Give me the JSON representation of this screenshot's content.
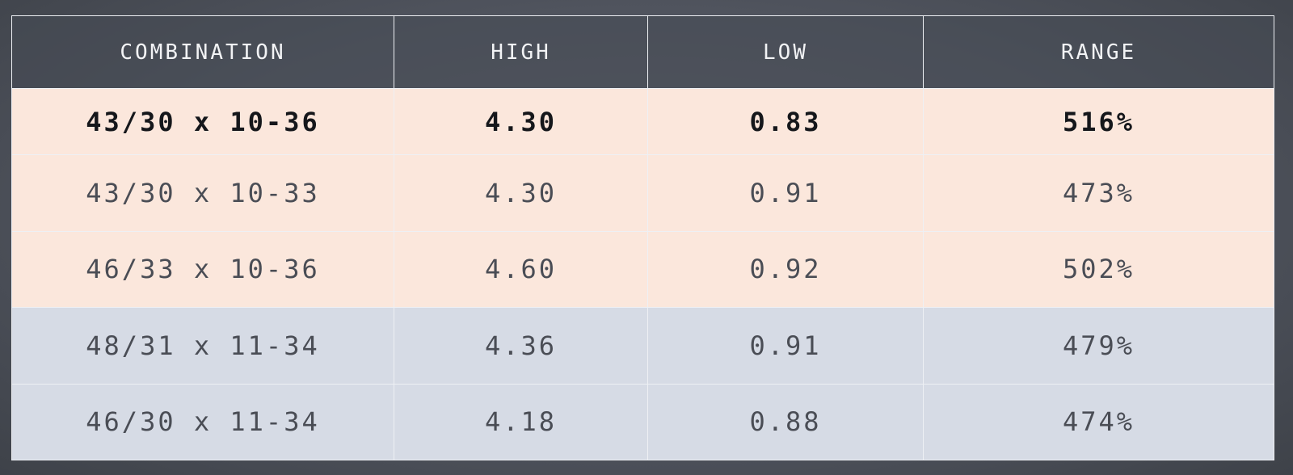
{
  "table": {
    "headers": [
      "COMBINATION",
      "HIGH",
      "LOW",
      "RANGE"
    ],
    "rows": [
      {
        "combination": "43/30 x 10-36",
        "high": "4.30",
        "low": "0.83",
        "range": "516%",
        "group": "peach",
        "highlight": true
      },
      {
        "combination": "43/30 x 10-33",
        "high": "4.30",
        "low": "0.91",
        "range": "473%",
        "group": "peach",
        "highlight": false
      },
      {
        "combination": "46/33 x 10-36",
        "high": "4.60",
        "low": "0.92",
        "range": "502%",
        "group": "peach",
        "highlight": false
      },
      {
        "combination": "48/31 x 11-34",
        "high": "4.36",
        "low": "0.91",
        "range": "479%",
        "group": "blue",
        "highlight": false
      },
      {
        "combination": "46/30 x 11-34",
        "high": "4.18",
        "low": "0.88",
        "range": "474%",
        "group": "blue",
        "highlight": false
      }
    ]
  },
  "colors": {
    "header_bg": "#4c505a",
    "peach_row": "#fbe7dc",
    "blue_row": "#d6dbe5",
    "grid_line": "#eef0f4"
  }
}
